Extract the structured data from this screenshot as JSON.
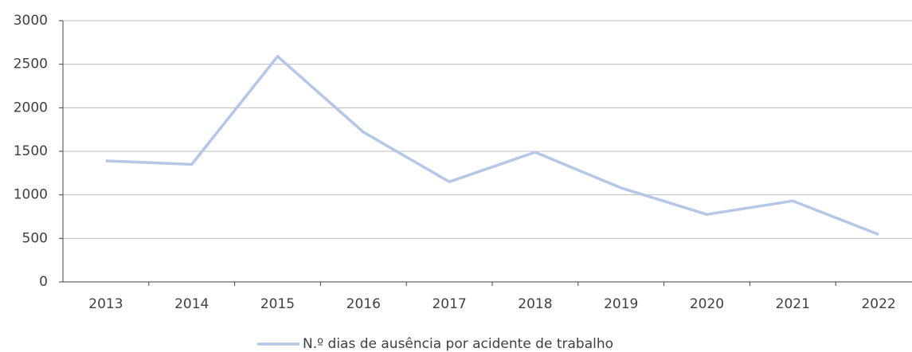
{
  "chart_data": {
    "type": "line",
    "categories": [
      "2013",
      "2014",
      "2015",
      "2016",
      "2017",
      "2018",
      "2019",
      "2020",
      "2021",
      "2022"
    ],
    "series": [
      {
        "name": "N.º dias de ausência por acidente de trabalho",
        "color": "#b4c7e7",
        "values": [
          1390,
          1350,
          2590,
          1720,
          1150,
          1490,
          1080,
          775,
          930,
          545
        ]
      }
    ],
    "ylim": [
      0,
      3000
    ],
    "yticks": [
      0,
      500,
      1000,
      1500,
      2000,
      2500,
      3000
    ],
    "grid": true,
    "legend": "bottom"
  }
}
